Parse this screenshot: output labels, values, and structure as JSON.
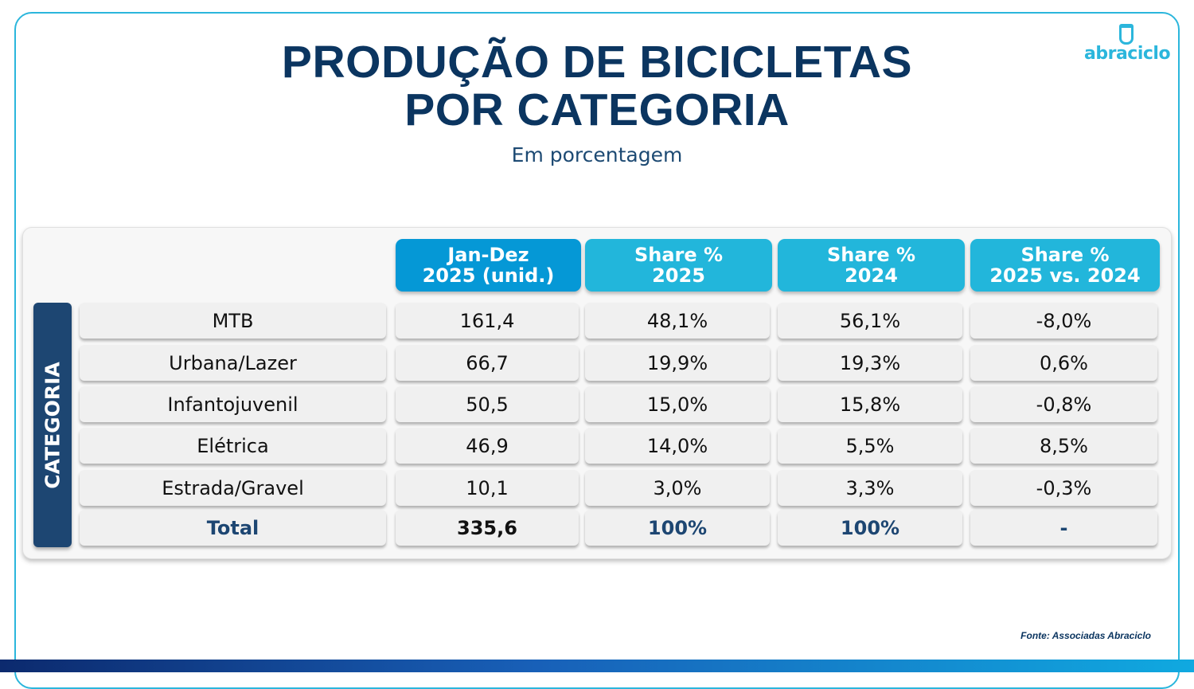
{
  "title_line1": "PRODUÇÃO DE BICICLETAS",
  "title_line2": "POR CATEGORIA",
  "subtitle": "Em porcentagem",
  "logo_text": "abraciclo",
  "side_label": "CATEGORIA",
  "headers": [
    {
      "line1": "Jan-Dez",
      "line2": "2025 (unid.)",
      "color": "#0598d6"
    },
    {
      "line1": "Share %",
      "line2": "2025",
      "color": "#22b6db"
    },
    {
      "line1": "Share %",
      "line2": "2024",
      "color": "#22b6db"
    },
    {
      "line1": "Share %",
      "line2": "2025 vs. 2024",
      "color": "#22b6db"
    }
  ],
  "rows": [
    {
      "label": "MTB",
      "cells": [
        "161,4",
        "48,1%",
        "56,1%",
        "-8,0%"
      ]
    },
    {
      "label": "Urbana/Lazer",
      "cells": [
        "66,7",
        "19,9%",
        "19,3%",
        "0,6%"
      ]
    },
    {
      "label": "Infantojuvenil",
      "cells": [
        "50,5",
        "15,0%",
        "15,8%",
        "-0,8%"
      ]
    },
    {
      "label": "Elétrica",
      "cells": [
        "46,9",
        "14,0%",
        "5,5%",
        "8,5%"
      ]
    },
    {
      "label": "Estrada/Gravel",
      "cells": [
        "10,1",
        "3,0%",
        "3,3%",
        "-0,3%"
      ]
    },
    {
      "label": "Total",
      "cells": [
        "335,6",
        "100%",
        "100%",
        "-"
      ]
    }
  ],
  "source": "Fonte: Associadas Abraciclo"
}
